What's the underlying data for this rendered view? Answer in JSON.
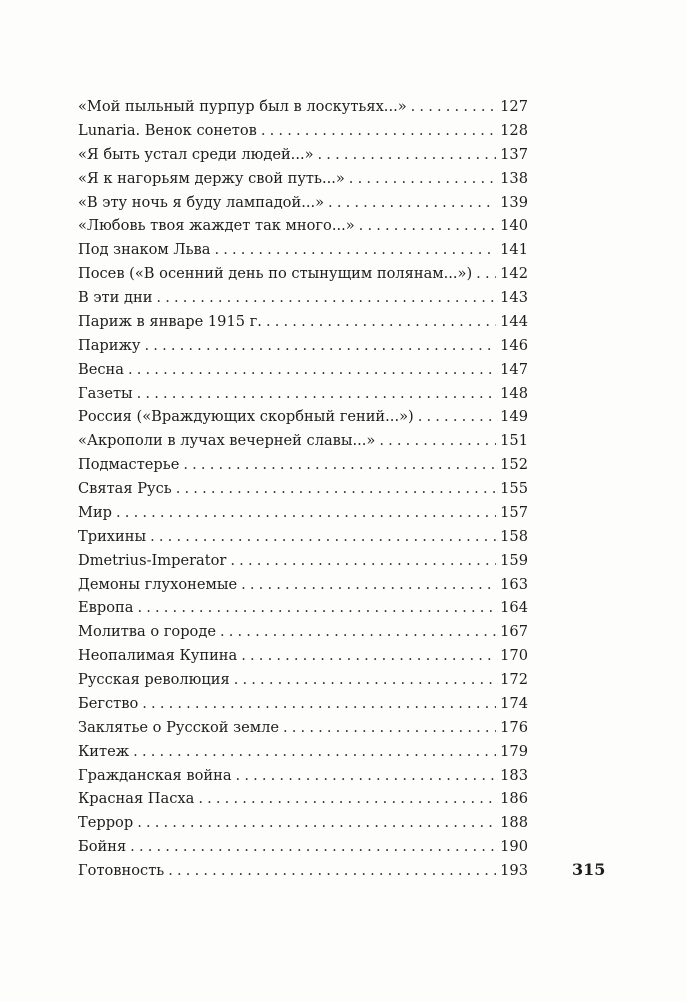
{
  "toc": [
    {
      "title": "«Мой пыльный пурпур был в лоскутьях...»",
      "page": "127"
    },
    {
      "title": "Lunaria. Венок сонетов",
      "page": "128"
    },
    {
      "title": "«Я быть устал среди людей...»",
      "page": "137"
    },
    {
      "title": "«Я к нагорьям держу свой путь...»",
      "page": "138"
    },
    {
      "title": "«В эту ночь я буду лампадой...»",
      "page": "139"
    },
    {
      "title": "«Любовь твоя жаждет так много...»",
      "page": "140"
    },
    {
      "title": "Под знаком Льва",
      "page": "141"
    },
    {
      "title": "Посев («В осенний день по стынущим полянам...»)",
      "page": "142"
    },
    {
      "title": "В эти дни",
      "page": "143"
    },
    {
      "title": "Париж в январе 1915 г.",
      "page": "144"
    },
    {
      "title": "Парижу",
      "page": "146"
    },
    {
      "title": "Весна",
      "page": "147"
    },
    {
      "title": "Газеты",
      "page": "148"
    },
    {
      "title": "Россия («Враждующих скорбный гений...»)",
      "page": "149"
    },
    {
      "title": "«Акрополи в лучах вечерней славы...»",
      "page": "151"
    },
    {
      "title": "Подмастерье",
      "page": "152"
    },
    {
      "title": "Святая Русь",
      "page": "155"
    },
    {
      "title": "Мир",
      "page": "157"
    },
    {
      "title": "Трихины",
      "page": "158"
    },
    {
      "title": "Dmetrius-Imperator",
      "page": "159"
    },
    {
      "title": "Демоны глухонемые",
      "page": "163"
    },
    {
      "title": "Европа",
      "page": "164"
    },
    {
      "title": "Молитва о городе",
      "page": "167"
    },
    {
      "title": "Неопалимая Купина",
      "page": "170"
    },
    {
      "title": "Русская революция",
      "page": "172"
    },
    {
      "title": "Бегство",
      "page": "174"
    },
    {
      "title": "Заклятье о Русской земле",
      "page": "176"
    },
    {
      "title": "Китеж",
      "page": "179"
    },
    {
      "title": "Гражданская война",
      "page": "183"
    },
    {
      "title": "Красная Пасха",
      "page": "186"
    },
    {
      "title": "Террор",
      "page": "188"
    },
    {
      "title": "Бойня",
      "page": "190"
    },
    {
      "title": "Готовность",
      "page": "193"
    }
  ],
  "folio": "315"
}
